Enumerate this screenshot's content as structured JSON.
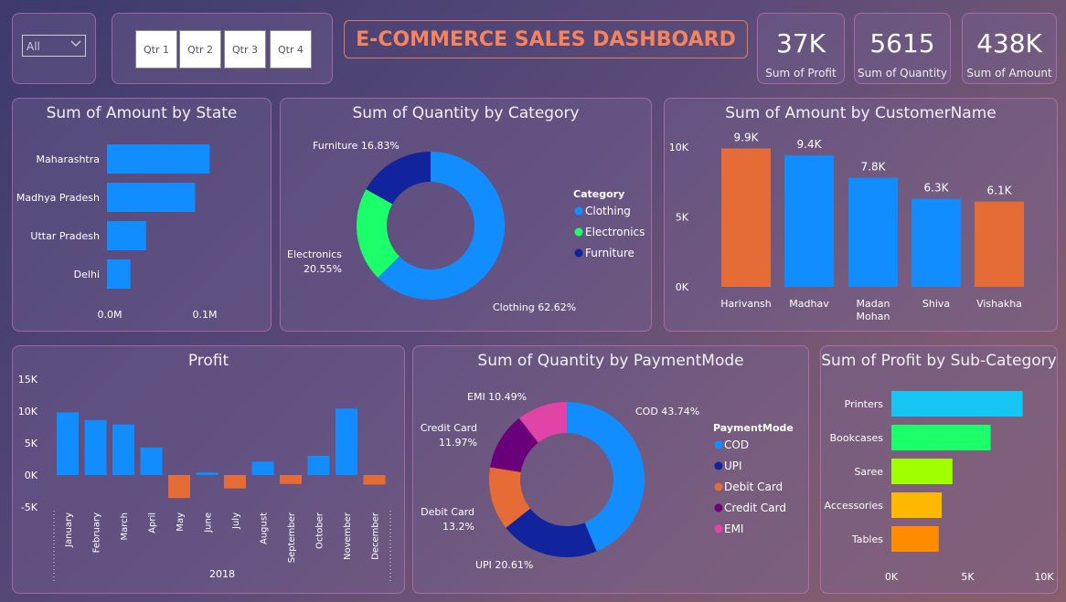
{
  "slicer": {
    "value": "All"
  },
  "quarters": [
    "Qtr 1",
    "Qtr 2",
    "Qtr 3",
    "Qtr 4"
  ],
  "dashboard_title": "E-COMMERCE SALES DASHBOARD",
  "kpis": [
    {
      "value": "37K",
      "label": "Sum of Profit"
    },
    {
      "value": "5615",
      "label": "Sum of Quantity"
    },
    {
      "value": "438K",
      "label": "Sum of Amount"
    }
  ],
  "chart_data": [
    {
      "id": "state",
      "type": "bar",
      "orientation": "horizontal",
      "title": "Sum of Amount by State",
      "categories": [
        "Maharashtra",
        "Madhya Pradesh",
        "Uttar Pradesh",
        "Delhi"
      ],
      "values": [
        0.105,
        0.09,
        0.04,
        0.024
      ],
      "xticks": [
        "0.0M",
        "0.1M"
      ],
      "xlim": [
        0,
        0.1
      ],
      "color": "#118dff"
    },
    {
      "id": "category",
      "type": "pie",
      "title": "Sum of Quantity by Category",
      "legend_title": "Category",
      "labels": [
        "Clothing",
        "Electronics",
        "Furniture"
      ],
      "values": [
        62.62,
        20.55,
        16.83
      ],
      "slice_labels": [
        "Clothing 62.62%",
        "Electronics 20.55%",
        "Furniture 16.83%"
      ],
      "colors": [
        "#118dff",
        "#1aff6a",
        "#12239e"
      ]
    },
    {
      "id": "customer",
      "type": "bar",
      "title": "Sum of Amount by CustomerName",
      "categories": [
        "Harivansh",
        "Madhav",
        "Madan Mohan",
        "Shiva",
        "Vishakha"
      ],
      "values": [
        9.9,
        9.4,
        7.8,
        6.3,
        6.1
      ],
      "data_labels": [
        "9.9K",
        "9.4K",
        "7.8K",
        "6.3K",
        "6.1K"
      ],
      "yticks": [
        "0K",
        "5K",
        "10K"
      ],
      "ylim": [
        0,
        10
      ],
      "colors": [
        "#e66c37",
        "#118dff",
        "#118dff",
        "#118dff",
        "#e66c37"
      ]
    },
    {
      "id": "profit",
      "type": "bar",
      "title": "Profit",
      "categories": [
        "January",
        "February",
        "March",
        "April",
        "May",
        "June",
        "July",
        "August",
        "September",
        "October",
        "November",
        "December"
      ],
      "values": [
        9.8,
        8.6,
        7.9,
        4.3,
        -3.6,
        0.4,
        -2.1,
        2.1,
        -1.4,
        3.0,
        10.4,
        -1.5
      ],
      "xlabel": "2018",
      "yticks": [
        "-5K",
        "0K",
        "5K",
        "10K",
        "15K"
      ],
      "ylim": [
        -5,
        15
      ],
      "pos_color": "#118dff",
      "neg_color": "#e66c37"
    },
    {
      "id": "payment",
      "type": "pie",
      "title": "Sum of Quantity by PaymentMode",
      "legend_title": "PaymentMode",
      "labels": [
        "COD",
        "UPI",
        "Debit Card",
        "Credit Card",
        "EMI"
      ],
      "values": [
        43.74,
        20.61,
        13.2,
        11.97,
        10.49
      ],
      "slice_labels": [
        "COD 43.74%",
        "UPI 20.61%",
        "Debit Card 13.2%",
        "Credit Card 11.97%",
        "EMI 10.49%"
      ],
      "colors": [
        "#118dff",
        "#12239e",
        "#e66c37",
        "#6b007b",
        "#e044a7"
      ]
    },
    {
      "id": "subcategory",
      "type": "bar",
      "orientation": "horizontal",
      "title": "Sum of Profit by Sub-Category",
      "categories": [
        "Printers",
        "Bookcases",
        "Saree",
        "Accessories",
        "Tables"
      ],
      "values": [
        8.6,
        6.5,
        4.0,
        3.3,
        3.1
      ],
      "xticks": [
        "0K",
        "5K",
        "10K"
      ],
      "xlim": [
        0,
        10
      ],
      "colors": [
        "#15c6f4",
        "#1aff6a",
        "#a0ff00",
        "#ffb800",
        "#ff8c00"
      ]
    }
  ]
}
